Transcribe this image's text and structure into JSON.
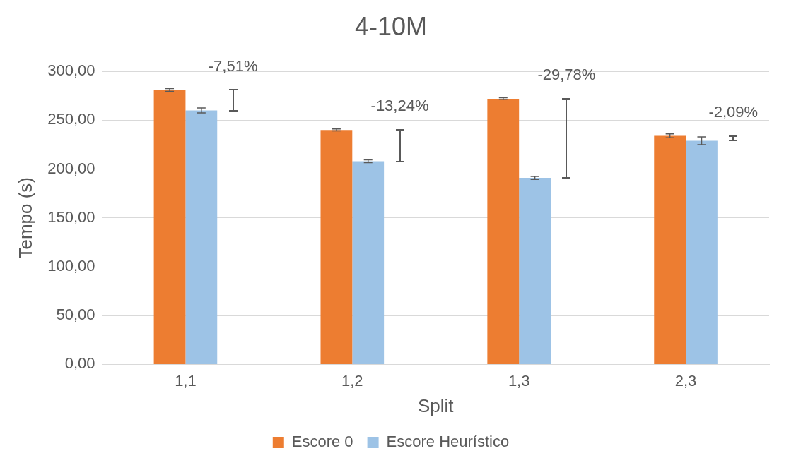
{
  "chart_data": {
    "type": "bar",
    "title": "4-10M",
    "xlabel": "Split",
    "ylabel": "Tempo (s)",
    "categories": [
      "1,1",
      "1,2",
      "1,3",
      "2,3"
    ],
    "series": [
      {
        "name": "Escore 0",
        "color": "#ed7d31",
        "values": [
          281,
          240,
          272,
          234
        ],
        "errors": [
          1.5,
          1,
          1,
          2
        ]
      },
      {
        "name": "Escore Heurístico",
        "color": "#9dc3e6",
        "values": [
          260,
          208,
          191,
          229
        ],
        "errors": [
          2.5,
          1.5,
          1.5,
          4
        ]
      }
    ],
    "annotations": [
      {
        "text": "-7,51%",
        "x": "1,1",
        "y": 281
      },
      {
        "text": "-13,24%",
        "x": "1,2",
        "y": 240
      },
      {
        "text": "-29,78%",
        "x": "1,3",
        "y": 272
      },
      {
        "text": "-2,09%",
        "x": "2,3",
        "y": 234
      }
    ],
    "ylim": [
      0,
      300
    ],
    "yticks": [
      {
        "value": 0,
        "label": "0,00"
      },
      {
        "value": 50,
        "label": "50,00"
      },
      {
        "value": 100,
        "label": "100,00"
      },
      {
        "value": 150,
        "label": "150,00"
      },
      {
        "value": 200,
        "label": "200,00"
      },
      {
        "value": 250,
        "label": "250,00"
      },
      {
        "value": 300,
        "label": "300,00"
      }
    ],
    "grid": "y",
    "legend": "bottom"
  }
}
